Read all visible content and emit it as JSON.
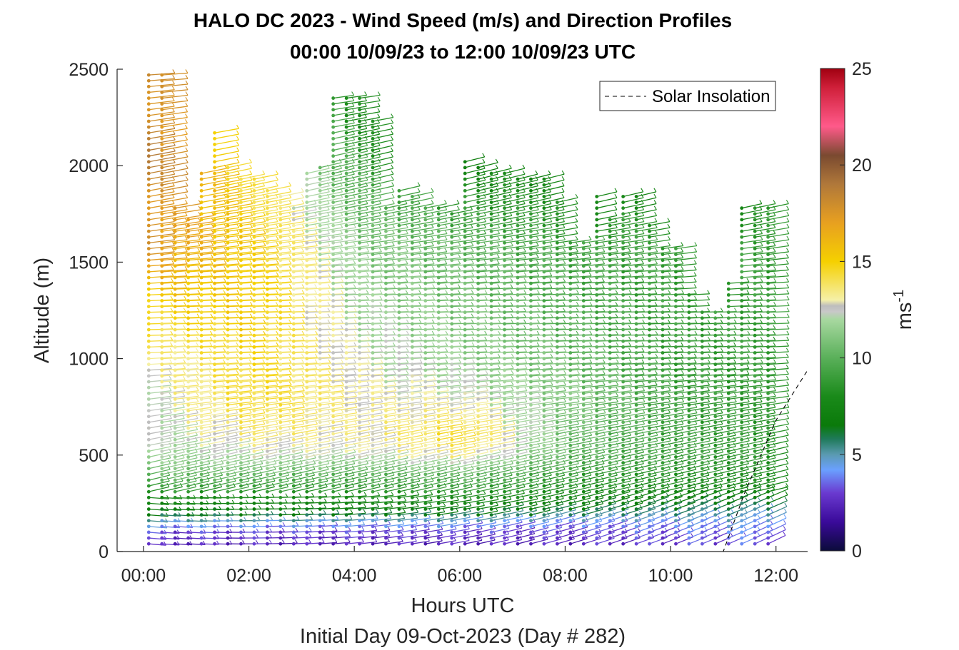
{
  "chart_data": {
    "type": "wind-barb-profile",
    "title_line1": "HALO DC 2023 - Wind Speed (m/s) and Direction Profiles",
    "title_line2": "00:00 10/09/23 to 12:00 10/09/23  UTC",
    "xlabel": "Hours UTC",
    "ylabel": "Altitude (m)",
    "subtitle": "Initial Day 09-Oct-2023 (Day # 282)",
    "xlim": [
      -0.5,
      12.6
    ],
    "ylim": [
      0,
      2500
    ],
    "xticks": [
      0,
      2,
      4,
      6,
      8,
      10,
      12
    ],
    "xtick_labels": [
      "00:00",
      "02:00",
      "04:00",
      "06:00",
      "08:00",
      "10:00",
      "12:00"
    ],
    "yticks": [
      0,
      500,
      1000,
      1500,
      2000,
      2500
    ],
    "ytick_labels": [
      "0",
      "500",
      "1000",
      "1500",
      "2000",
      "2500"
    ],
    "legend": {
      "label": "Solar Insolation",
      "style": "dashed",
      "position": "top-right"
    },
    "colorbar": {
      "min": 0,
      "max": 25,
      "ticks": [
        0,
        5,
        10,
        15,
        20,
        25
      ],
      "tick_labels": [
        "0",
        "5",
        "10",
        "15",
        "20",
        "25"
      ],
      "label_base": "ms",
      "label_exp": "-1",
      "stops": [
        {
          "v": 0,
          "c": "#0b0b3a"
        },
        {
          "v": 1.5,
          "c": "#3a0a9a"
        },
        {
          "v": 3,
          "c": "#6a3ad0"
        },
        {
          "v": 4.2,
          "c": "#6aa0ff"
        },
        {
          "v": 5,
          "c": "#5a9ab0"
        },
        {
          "v": 5.8,
          "c": "#1f7a5a"
        },
        {
          "v": 6.5,
          "c": "#0a7a0a"
        },
        {
          "v": 8,
          "c": "#1a8a1a"
        },
        {
          "v": 10,
          "c": "#5ab05a"
        },
        {
          "v": 12,
          "c": "#a8d8a0"
        },
        {
          "v": 12.4,
          "c": "#c8c8c8"
        },
        {
          "v": 12.7,
          "c": "#bdbdbd"
        },
        {
          "v": 13,
          "c": "#f5f0a8"
        },
        {
          "v": 15,
          "c": "#f5d000"
        },
        {
          "v": 17,
          "c": "#e8a020"
        },
        {
          "v": 19,
          "c": "#b0783a"
        },
        {
          "v": 20.5,
          "c": "#7a4a30"
        },
        {
          "v": 22,
          "c": "#ff5a8a"
        },
        {
          "v": 24,
          "c": "#d0203a"
        },
        {
          "v": 25,
          "c": "#a00010"
        }
      ]
    },
    "solar_insolation": {
      "x": [
        -0.5,
        11.0,
        11.4,
        12.0,
        12.6
      ],
      "y": [
        0,
        0,
        300,
        680,
        940
      ]
    },
    "times": [
      0.1,
      0.35,
      0.6,
      0.85,
      1.1,
      1.35,
      1.6,
      1.85,
      2.1,
      2.35,
      2.6,
      2.85,
      3.1,
      3.35,
      3.6,
      3.85,
      4.1,
      4.35,
      4.6,
      4.85,
      5.1,
      5.35,
      5.6,
      5.85,
      6.1,
      6.35,
      6.6,
      6.85,
      7.1,
      7.35,
      7.6,
      7.85,
      8.1,
      8.35,
      8.6,
      8.85,
      9.1,
      9.35,
      9.6,
      9.85,
      10.1,
      10.35,
      10.6,
      10.85,
      11.1,
      11.35,
      11.6,
      11.85
    ],
    "profile_top_m": [
      2480,
      2480,
      1790,
      1740,
      1960,
      2190,
      2000,
      1950,
      1950,
      1880,
      1850,
      1800,
      1960,
      2000,
      2360,
      2360,
      2360,
      2230,
      1780,
      1870,
      1860,
      1800,
      1780,
      1770,
      2040,
      2010,
      1970,
      1960,
      1950,
      1950,
      1950,
      1810,
      1620,
      1620,
      1860,
      1740,
      1860,
      1860,
      1700,
      1580,
      1580,
      1340,
      1260,
      1260,
      1410,
      1790,
      1790,
      1790
    ],
    "speed_grid": {
      "z_m": [
        50,
        100,
        150,
        200,
        250,
        300,
        400,
        500,
        600,
        800,
        1000,
        1200,
        1400,
        1600,
        1800,
        2000,
        2200,
        2400
      ],
      "t_h": [
        0,
        2,
        4,
        6,
        8,
        10,
        12
      ],
      "speeds": [
        [
          2.5,
          2.5,
          2.5,
          2.5,
          2.5,
          3.0,
          3.5
        ],
        [
          3.0,
          3.0,
          3.0,
          3.0,
          3.0,
          3.5,
          4.0
        ],
        [
          4.5,
          4.5,
          4.5,
          4.5,
          4.0,
          4.2,
          4.5
        ],
        [
          6.5,
          6.5,
          6.5,
          6.5,
          6.0,
          5.5,
          5.0
        ],
        [
          7.5,
          7.5,
          7.5,
          7.5,
          7.0,
          6.5,
          6.0
        ],
        [
          8.5,
          8.5,
          8.5,
          8.5,
          8.0,
          7.5,
          7.0
        ],
        [
          10.5,
          10.5,
          10.0,
          10.5,
          9.0,
          8.5,
          8.0
        ],
        [
          11.5,
          12.5,
          12.5,
          13.5,
          10.0,
          9.0,
          8.5
        ],
        [
          12.0,
          13.5,
          13.0,
          14.5,
          10.5,
          9.0,
          8.5
        ],
        [
          12.5,
          14.5,
          13.0,
          12.5,
          11.0,
          9.0,
          8.5
        ],
        [
          13.0,
          14.5,
          12.5,
          11.5,
          10.5,
          9.0,
          9.0
        ],
        [
          14.5,
          15.0,
          12.0,
          11.0,
          10.0,
          9.0,
          9.0
        ],
        [
          16.0,
          15.0,
          11.5,
          10.5,
          9.5,
          9.0,
          9.0
        ],
        [
          17.5,
          15.0,
          11.0,
          10.0,
          9.0,
          9.0,
          9.0
        ],
        [
          18.0,
          14.5,
          10.0,
          8.5,
          8.0,
          8.0,
          8.0
        ],
        [
          18.5,
          14.0,
          9.0,
          7.5,
          7.0,
          7.0,
          7.0
        ],
        [
          18.5,
          14.0,
          8.0,
          7.0,
          7.0,
          7.0,
          7.0
        ],
        [
          18.0,
          14.0,
          8.0,
          7.0,
          7.0,
          7.0,
          7.0
        ]
      ]
    },
    "barb_directions_deg": {
      "low_levels": "approximately 90 (from the east)",
      "upper_levels": "approximately 80-120 veering with height"
    }
  }
}
